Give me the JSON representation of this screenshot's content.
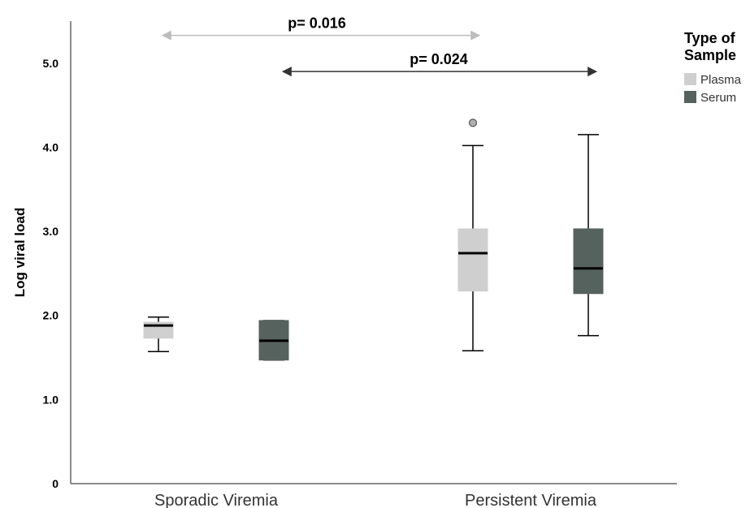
{
  "chart_data": {
    "type": "box",
    "ylabel": "Log viral load",
    "ylim": [
      0,
      5.5
    ],
    "y_ticks": [
      {
        "value": 0,
        "label": "0"
      },
      {
        "value": 1.0,
        "label": "1.0"
      },
      {
        "value": 2.0,
        "label": "2.0"
      },
      {
        "value": 3.0,
        "label": "3.0"
      },
      {
        "value": 4.0,
        "label": "4.0"
      },
      {
        "value": 5.0,
        "label": "5.0"
      }
    ],
    "categories": [
      "Sporadic Viremia",
      "Persistent Viremia"
    ],
    "legend": {
      "title_lines": [
        "Type of",
        "Sample"
      ],
      "position": "top-right"
    },
    "series": [
      {
        "name": "Plasma",
        "color": "#cfcfcf",
        "boxes": [
          {
            "min": 1.57,
            "q1": 1.73,
            "median": 1.88,
            "q3": 1.92,
            "max": 1.98,
            "outliers": []
          },
          {
            "min": 1.58,
            "q1": 2.29,
            "median": 2.74,
            "q3": 3.03,
            "max": 4.02,
            "outliers": [
              4.29
            ]
          }
        ]
      },
      {
        "name": "Serum",
        "color": "#56625d",
        "boxes": [
          {
            "min": 1.47,
            "q1": 1.47,
            "median": 1.7,
            "q3": 1.94,
            "max": 1.94,
            "outliers": []
          },
          {
            "min": 1.76,
            "q1": 2.26,
            "median": 2.56,
            "q3": 3.03,
            "max": 4.15,
            "outliers": []
          }
        ]
      }
    ],
    "annotations": [
      {
        "text": "p= 0.016",
        "from": "Sporadic Viremia - Plasma",
        "to": "Persistent Viremia - Plasma",
        "y": 5.33,
        "color": "#bdbdbd"
      },
      {
        "text": "p= 0.024",
        "from": "Sporadic Viremia - Serum",
        "to": "Persistent Viremia - Serum",
        "y": 4.9,
        "color": "#333333"
      }
    ],
    "grid": false
  }
}
